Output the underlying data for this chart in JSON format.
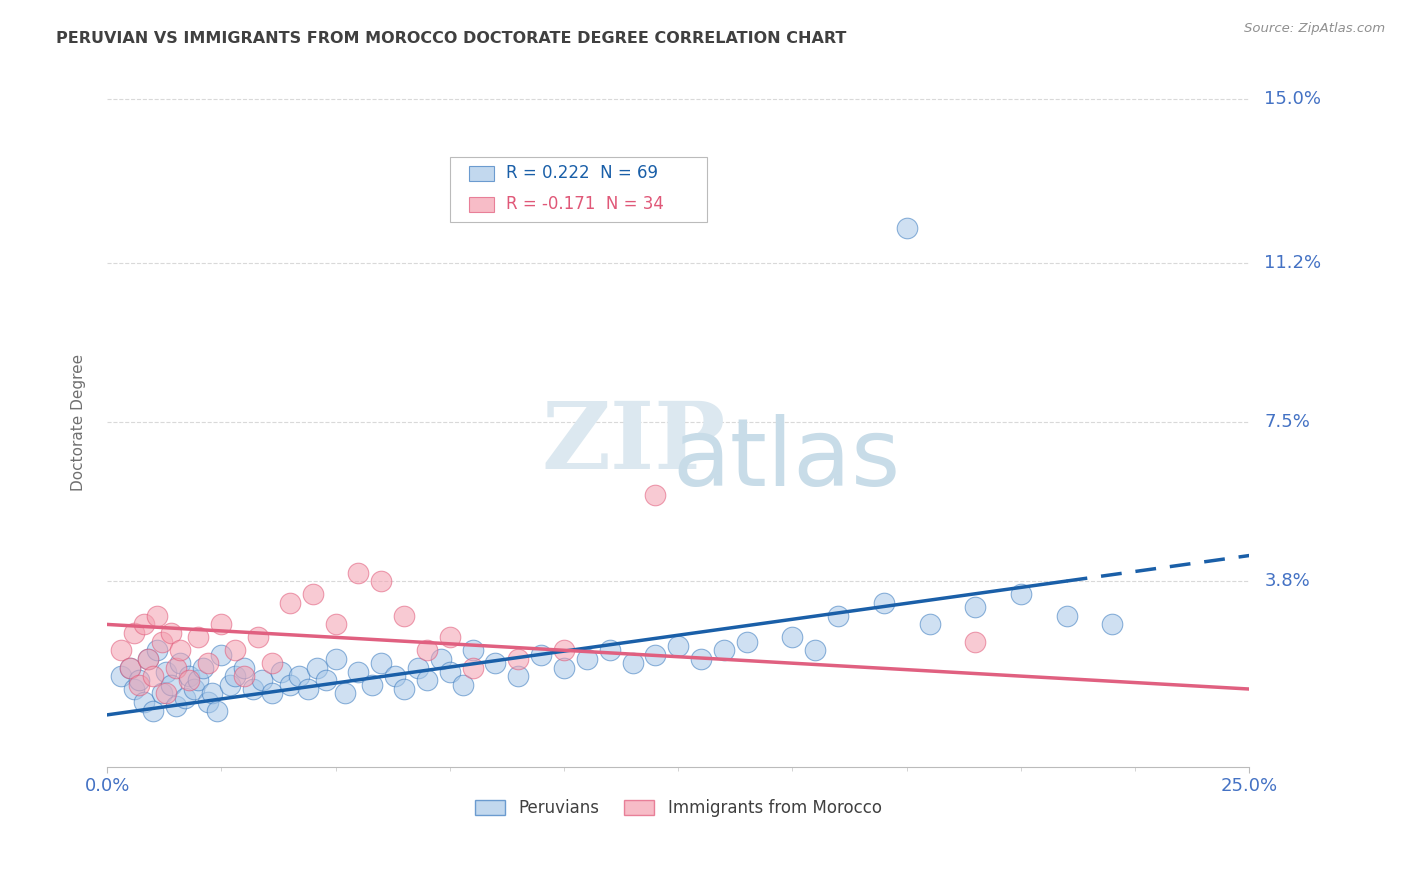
{
  "title": "PERUVIAN VS IMMIGRANTS FROM MOROCCO DOCTORATE DEGREE CORRELATION CHART",
  "source_text": "Source: ZipAtlas.com",
  "ylabel": "Doctorate Degree",
  "xlim": [
    0.0,
    0.25
  ],
  "ylim": [
    -0.005,
    0.155
  ],
  "yticks": [
    0.038,
    0.075,
    0.112,
    0.15
  ],
  "ytick_labels": [
    "3.8%",
    "7.5%",
    "11.2%",
    "15.0%"
  ],
  "xticks": [
    0.0,
    0.25
  ],
  "xtick_labels": [
    "0.0%",
    "25.0%"
  ],
  "blue_fill": "#a8c8e8",
  "blue_edge": "#3a7abf",
  "pink_fill": "#f4a0b0",
  "pink_edge": "#e05878",
  "blue_line_color": "#1a5fa8",
  "pink_line_color": "#e06080",
  "legend_blue_label": "Peruvians",
  "legend_pink_label": "Immigrants from Morocco",
  "R_blue": 0.222,
  "N_blue": 69,
  "R_pink": -0.171,
  "N_pink": 34,
  "watermark_ZIP": "ZIP",
  "watermark_atlas": "atlas",
  "background_color": "#ffffff",
  "grid_color": "#d0d0d0",
  "title_color": "#404040",
  "axis_label_color": "#707070",
  "right_tick_color": "#4472c4",
  "blue_trend_x0": 0.0,
  "blue_trend_y0": 0.007,
  "blue_trend_x1": 0.25,
  "blue_trend_y1": 0.044,
  "pink_trend_x0": 0.0,
  "pink_trend_y0": 0.028,
  "pink_trend_x1": 0.25,
  "pink_trend_y1": 0.013,
  "blue_scatter_x": [
    0.003,
    0.005,
    0.006,
    0.007,
    0.008,
    0.009,
    0.01,
    0.011,
    0.012,
    0.013,
    0.014,
    0.015,
    0.016,
    0.017,
    0.018,
    0.019,
    0.02,
    0.021,
    0.022,
    0.023,
    0.024,
    0.025,
    0.027,
    0.028,
    0.03,
    0.032,
    0.034,
    0.036,
    0.038,
    0.04,
    0.042,
    0.044,
    0.046,
    0.048,
    0.05,
    0.052,
    0.055,
    0.058,
    0.06,
    0.063,
    0.065,
    0.068,
    0.07,
    0.073,
    0.075,
    0.078,
    0.08,
    0.085,
    0.09,
    0.095,
    0.1,
    0.105,
    0.11,
    0.115,
    0.12,
    0.125,
    0.13,
    0.135,
    0.14,
    0.15,
    0.155,
    0.16,
    0.17,
    0.18,
    0.19,
    0.2,
    0.21,
    0.22,
    0.175
  ],
  "blue_scatter_y": [
    0.016,
    0.018,
    0.013,
    0.015,
    0.01,
    0.02,
    0.008,
    0.022,
    0.012,
    0.017,
    0.014,
    0.009,
    0.019,
    0.011,
    0.016,
    0.013,
    0.015,
    0.018,
    0.01,
    0.012,
    0.008,
    0.021,
    0.014,
    0.016,
    0.018,
    0.013,
    0.015,
    0.012,
    0.017,
    0.014,
    0.016,
    0.013,
    0.018,
    0.015,
    0.02,
    0.012,
    0.017,
    0.014,
    0.019,
    0.016,
    0.013,
    0.018,
    0.015,
    0.02,
    0.017,
    0.014,
    0.022,
    0.019,
    0.016,
    0.021,
    0.018,
    0.02,
    0.022,
    0.019,
    0.021,
    0.023,
    0.02,
    0.022,
    0.024,
    0.025,
    0.022,
    0.03,
    0.033,
    0.028,
    0.032,
    0.035,
    0.03,
    0.028,
    0.12
  ],
  "pink_scatter_x": [
    0.003,
    0.005,
    0.006,
    0.007,
    0.008,
    0.009,
    0.01,
    0.011,
    0.012,
    0.013,
    0.014,
    0.015,
    0.016,
    0.018,
    0.02,
    0.022,
    0.025,
    0.028,
    0.03,
    0.033,
    0.036,
    0.04,
    0.045,
    0.05,
    0.055,
    0.06,
    0.065,
    0.07,
    0.075,
    0.08,
    0.09,
    0.1,
    0.19,
    0.12
  ],
  "pink_scatter_y": [
    0.022,
    0.018,
    0.026,
    0.014,
    0.028,
    0.02,
    0.016,
    0.03,
    0.024,
    0.012,
    0.026,
    0.018,
    0.022,
    0.015,
    0.025,
    0.019,
    0.028,
    0.022,
    0.016,
    0.025,
    0.019,
    0.033,
    0.035,
    0.028,
    0.04,
    0.038,
    0.03,
    0.022,
    0.025,
    0.018,
    0.02,
    0.022,
    0.024,
    0.058
  ]
}
